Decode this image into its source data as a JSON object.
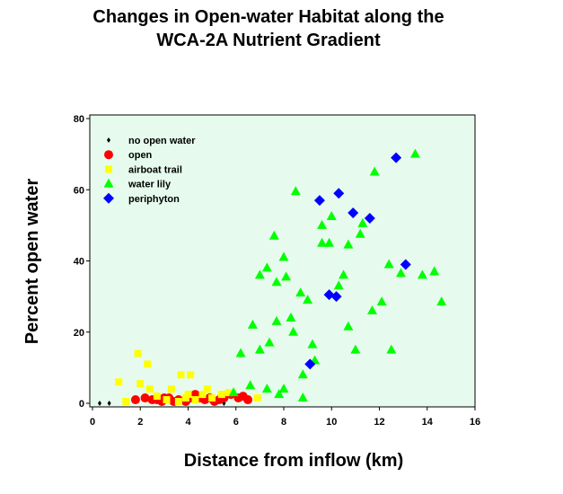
{
  "chart_data": {
    "type": "scatter",
    "title_lines": [
      "Changes in Open-water Habitat along the",
      "WCA-2A Nutrient Gradient"
    ],
    "xlabel": "Distance from inflow (km)",
    "ylabel": "Percent open water",
    "xlim": [
      0,
      16
    ],
    "ylim": [
      0,
      80
    ],
    "x_ticks": [
      "0",
      "2",
      "4",
      "6",
      "8",
      "10",
      "12",
      "14",
      "16"
    ],
    "y_ticks": [
      "0",
      "20",
      "40",
      "60",
      "80"
    ],
    "grid": false,
    "plot_background": "#e6fbee",
    "legend_position": "top-left",
    "series": [
      {
        "name": "no open water",
        "color": "#000000",
        "marker": "diamond-small",
        "points": [
          [
            0.3,
            0
          ],
          [
            0.7,
            0
          ],
          [
            5.5,
            0
          ]
        ]
      },
      {
        "name": "open",
        "color": "#ff0000",
        "marker": "circle",
        "points": [
          [
            1.8,
            1
          ],
          [
            2.2,
            1.5
          ],
          [
            2.5,
            1
          ],
          [
            2.7,
            1
          ],
          [
            2.9,
            0.5
          ],
          [
            3.0,
            1.5
          ],
          [
            3.2,
            1.5
          ],
          [
            3.4,
            0.5
          ],
          [
            3.6,
            1
          ],
          [
            3.9,
            0.5
          ],
          [
            4.1,
            1.5
          ],
          [
            4.3,
            2.5
          ],
          [
            4.5,
            1.5
          ],
          [
            4.7,
            1
          ],
          [
            4.9,
            1.5
          ],
          [
            5.1,
            0.5
          ],
          [
            5.3,
            1
          ],
          [
            5.5,
            1.5
          ],
          [
            5.8,
            2.5
          ],
          [
            6.1,
            1.5
          ],
          [
            6.3,
            2
          ],
          [
            6.5,
            1
          ]
        ]
      },
      {
        "name": "airboat trail",
        "color": "#ffff00",
        "marker": "square",
        "points": [
          [
            1.1,
            6
          ],
          [
            1.4,
            0.5
          ],
          [
            1.9,
            14
          ],
          [
            2.0,
            5.5
          ],
          [
            2.3,
            11
          ],
          [
            2.4,
            4
          ],
          [
            2.7,
            2
          ],
          [
            3.1,
            1
          ],
          [
            3.3,
            4
          ],
          [
            3.6,
            0.5
          ],
          [
            3.7,
            8
          ],
          [
            3.9,
            1.5
          ],
          [
            4.0,
            2.5
          ],
          [
            4.1,
            8
          ],
          [
            4.3,
            1
          ],
          [
            4.6,
            2.5
          ],
          [
            4.8,
            4
          ],
          [
            5.0,
            1.5
          ],
          [
            5.4,
            2.5
          ],
          [
            5.7,
            3
          ],
          [
            6.9,
            1.5
          ]
        ]
      },
      {
        "name": "water lily",
        "color": "#00ff00",
        "marker": "triangle",
        "points": [
          [
            5.9,
            3
          ],
          [
            6.2,
            14
          ],
          [
            6.6,
            5
          ],
          [
            6.7,
            22
          ],
          [
            7.0,
            15
          ],
          [
            7.0,
            36
          ],
          [
            7.3,
            4
          ],
          [
            7.3,
            38
          ],
          [
            7.4,
            17
          ],
          [
            7.6,
            47
          ],
          [
            7.7,
            23
          ],
          [
            7.7,
            34
          ],
          [
            7.8,
            2.5
          ],
          [
            8.0,
            41
          ],
          [
            8.0,
            4
          ],
          [
            8.1,
            35.5
          ],
          [
            8.3,
            24
          ],
          [
            8.4,
            20
          ],
          [
            8.5,
            59.5
          ],
          [
            8.7,
            31
          ],
          [
            8.8,
            1.5
          ],
          [
            8.8,
            8
          ],
          [
            9.0,
            29
          ],
          [
            9.2,
            16.5
          ],
          [
            9.3,
            12
          ],
          [
            9.6,
            45
          ],
          [
            9.6,
            50
          ],
          [
            9.9,
            45
          ],
          [
            10.0,
            52.5
          ],
          [
            10.3,
            33
          ],
          [
            10.5,
            36
          ],
          [
            10.7,
            21.5
          ],
          [
            10.7,
            44.5
          ],
          [
            11.0,
            15
          ],
          [
            11.2,
            47.5
          ],
          [
            11.3,
            50.5
          ],
          [
            11.7,
            26
          ],
          [
            11.8,
            65
          ],
          [
            12.1,
            28.5
          ],
          [
            12.4,
            39
          ],
          [
            12.5,
            15
          ],
          [
            12.9,
            36.5
          ],
          [
            13.5,
            70
          ],
          [
            13.8,
            36
          ],
          [
            14.3,
            37
          ],
          [
            14.6,
            28.5
          ]
        ]
      },
      {
        "name": "periphyton",
        "color": "#0000ff",
        "marker": "diamond",
        "points": [
          [
            9.1,
            11
          ],
          [
            9.5,
            57
          ],
          [
            9.9,
            30.5
          ],
          [
            10.2,
            30
          ],
          [
            10.3,
            59
          ],
          [
            10.9,
            53.5
          ],
          [
            11.6,
            52
          ],
          [
            12.7,
            69
          ],
          [
            13.1,
            39
          ]
        ]
      }
    ]
  }
}
